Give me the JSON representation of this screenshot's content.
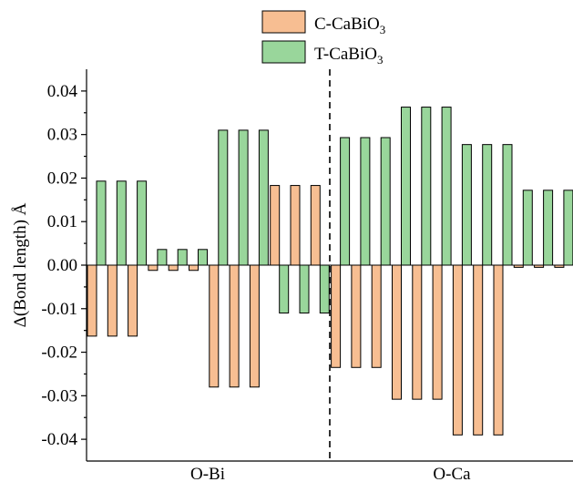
{
  "colors": {
    "c_series": "#f7be92",
    "t_series": "#99d69b"
  },
  "chart_data": {
    "type": "bar",
    "ylabel": "Δ(Bond length) Å",
    "ylim": [
      -0.045,
      0.045
    ],
    "yticks": [
      -0.04,
      -0.03,
      -0.02,
      -0.01,
      0.0,
      0.01,
      0.02,
      0.03,
      0.04
    ],
    "ytick_labels": [
      "-0.04",
      "-0.03",
      "-0.02",
      "-0.01",
      "0.00",
      "0.01",
      "0.02",
      "0.03",
      "0.04"
    ],
    "groups": [
      "O-Bi",
      "O-Ca"
    ],
    "legend_position": "top-center",
    "divider": "dashed vertical line between O-Bi and O-Ca",
    "series": [
      {
        "name_main": "C-CaBiO",
        "name_sub": "3",
        "color": "#f7be92",
        "values": [
          -0.0163,
          -0.0163,
          -0.0163,
          -0.0012,
          -0.0012,
          -0.0012,
          -0.028,
          -0.028,
          -0.028,
          0.0183,
          0.0183,
          0.0183,
          -0.0235,
          -0.0235,
          -0.0235,
          -0.0308,
          -0.0308,
          -0.0308,
          -0.039,
          -0.039,
          -0.039,
          -0.0005,
          -0.0005,
          -0.0005
        ]
      },
      {
        "name_main": "T-CaBiO",
        "name_sub": "3",
        "color": "#99d69b",
        "values": [
          0.0193,
          0.0193,
          0.0193,
          0.0036,
          0.0036,
          0.0036,
          0.031,
          0.031,
          0.031,
          -0.011,
          -0.011,
          -0.011,
          0.0293,
          0.0293,
          0.0293,
          0.0363,
          0.0363,
          0.0363,
          0.0277,
          0.0277,
          0.0277,
          0.0172,
          0.0172,
          0.0172
        ]
      }
    ]
  }
}
